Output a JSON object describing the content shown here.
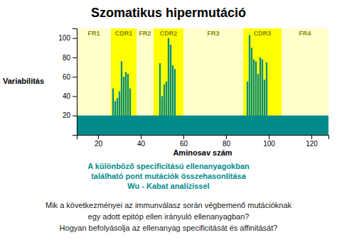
{
  "chart_data": {
    "type": "bar",
    "title": "Szomatikus hipermutáció",
    "y_label": "Variabilitás",
    "x_label": "Aminosav szám",
    "xlim": [
      10,
      128
    ],
    "ylim": [
      0,
      110
    ],
    "yticks": [
      20,
      40,
      60,
      80,
      100
    ],
    "xticks": [
      20,
      40,
      60,
      80,
      100,
      120
    ],
    "color": "#008b8b",
    "baseline": {
      "value": 20,
      "color": "#008b8b"
    },
    "regions": [
      {
        "name": "FR1",
        "start": 10,
        "end": 26,
        "color": "#ffffcc",
        "label_color": "#888800"
      },
      {
        "name": "CDR1",
        "start": 26,
        "end": 38,
        "color": "#ffff00",
        "label_color": "#888800"
      },
      {
        "name": "FR2",
        "start": 38,
        "end": 46,
        "color": "#ffffcc",
        "label_color": "#888800"
      },
      {
        "name": "CDR2",
        "start": 46,
        "end": 60,
        "color": "#ffff00",
        "label_color": "#888800"
      },
      {
        "name": "FR3",
        "start": 60,
        "end": 88,
        "color": "#ffffcc",
        "label_color": "#888800"
      },
      {
        "name": "CDR3",
        "start": 88,
        "end": 106,
        "color": "#ffff00",
        "label_color": "#888800"
      },
      {
        "name": "FR4",
        "start": 106,
        "end": 128,
        "color": "#ffffcc",
        "label_color": "#888800"
      }
    ],
    "x": [
      27,
      28,
      29,
      30,
      31,
      32,
      33,
      34,
      35,
      49,
      50,
      51,
      52,
      53,
      54,
      55,
      56,
      90,
      91,
      92,
      93,
      94,
      95,
      96,
      97,
      98,
      99
    ],
    "values": [
      48,
      35,
      38,
      45,
      76,
      60,
      65,
      63,
      48,
      74,
      40,
      52,
      55,
      100,
      93,
      72,
      68,
      55,
      103,
      90,
      78,
      76,
      63,
      80,
      78,
      57,
      75
    ],
    "subtitle": [
      "A különböző specificitású ellenanyagokban",
      "található pont mutációk összehasonlítása",
      "Wu - Kabat analízissel"
    ],
    "subtitle_color": "#008b8b",
    "annotations": [
      "Mik a következményei az immunválasz során végbemenő mutációknak",
      "egy adott epitóp ellen irányuló ellenanyagban?",
      "Hogyan befolyásolja az ellenanyag specificitását és affinitását?"
    ],
    "annotation_color": "#1a1a1a"
  }
}
